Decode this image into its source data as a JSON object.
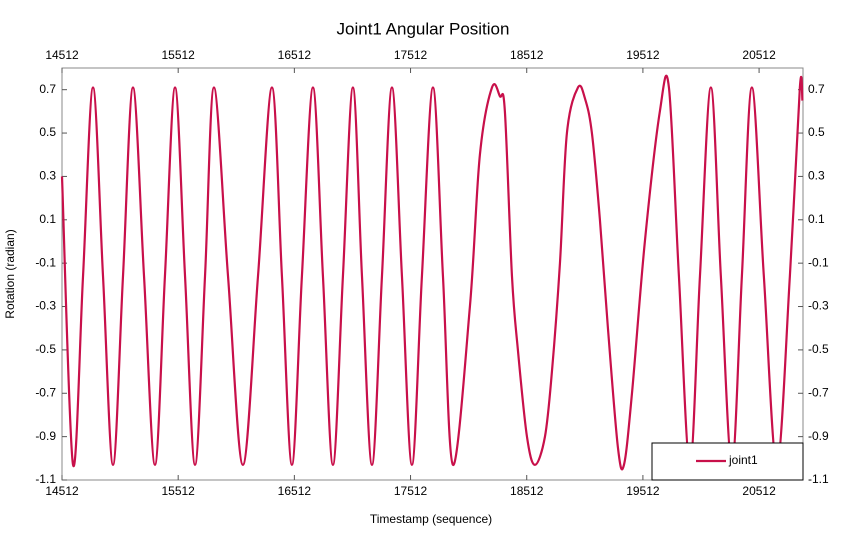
{
  "chart_data": {
    "type": "line",
    "title": "Joint1 Angular Position",
    "x_label": "Timestamp (sequence)",
    "y_label": "Rotation (radian)",
    "xlim": [
      14512,
      20890
    ],
    "ylim": [
      -1.1,
      0.8
    ],
    "xticks": [
      14512,
      15512,
      16512,
      17512,
      18512,
      19512,
      20512
    ],
    "yticks": [
      0.7,
      0.5,
      0.3,
      0.1,
      -0.1,
      -0.3,
      -0.5,
      -0.7,
      -0.9,
      -1.1
    ],
    "legend": "lower right",
    "x": [
      14512,
      14607,
      14693,
      14779,
      14865,
      14951,
      15037,
      15123,
      15218,
      15312,
      15398,
      15485,
      15571,
      15657,
      15743,
      15820,
      15941,
      16069,
      16199,
      16319,
      16405,
      16491,
      16577,
      16672,
      16758,
      16844,
      16930,
      17016,
      17094,
      17180,
      17266,
      17352,
      17438,
      17524,
      17610,
      17705,
      17791,
      17877,
      18023,
      18109,
      18213,
      18281,
      18324,
      18385,
      18436,
      18514,
      18583,
      18669,
      18729,
      18798,
      18858,
      18953,
      19013,
      19073,
      19142,
      19211,
      19297,
      19349,
      19418,
      19529,
      19658,
      19736,
      19822,
      19917,
      20003,
      20097,
      20183,
      20278,
      20364,
      20450,
      20553,
      20665,
      20777,
      20863,
      20885
    ],
    "series": [
      {
        "name": "joint1",
        "color": "#c8104a",
        "values": [
          0.3,
          -1.03,
          -0.16,
          0.71,
          -0.16,
          -1.03,
          -0.16,
          0.71,
          -0.16,
          -1.03,
          -0.16,
          0.71,
          -0.16,
          -1.03,
          -0.16,
          0.71,
          -0.16,
          -1.03,
          -0.16,
          0.71,
          -0.16,
          -1.03,
          -0.16,
          0.71,
          -0.16,
          -1.03,
          -0.16,
          0.71,
          -0.16,
          -1.03,
          -0.16,
          0.71,
          -0.16,
          -1.03,
          -0.16,
          0.71,
          -0.16,
          -1.03,
          -0.3,
          0.4,
          0.71,
          0.67,
          0.6,
          -0.16,
          -0.5,
          -0.9,
          -1.03,
          -0.9,
          -0.6,
          -0.1,
          0.5,
          0.71,
          0.66,
          0.5,
          0.1,
          -0.4,
          -0.95,
          -1.03,
          -0.7,
          0.0,
          0.6,
          0.71,
          -0.16,
          -1.03,
          -0.16,
          0.71,
          -0.16,
          -1.03,
          -0.16,
          0.71,
          -0.16,
          -1.03,
          -0.16,
          0.71,
          0.65
        ]
      }
    ]
  }
}
